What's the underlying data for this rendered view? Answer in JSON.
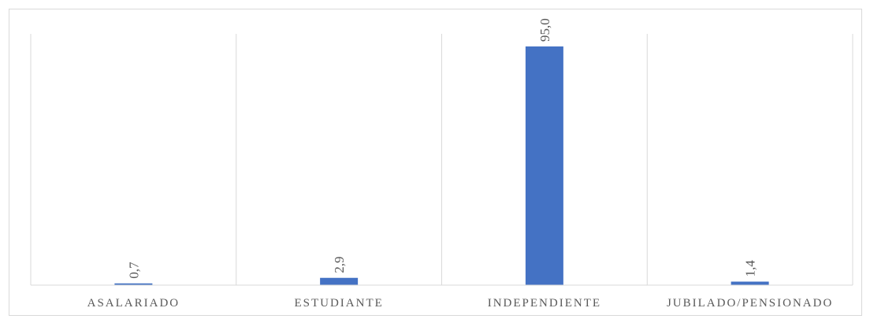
{
  "chart_data": {
    "type": "bar",
    "categories": [
      "ASALARIADO",
      "ESTUDIANTE",
      "INDEPENDIENTE",
      "JUBILADO/PENSIONADO"
    ],
    "values": [
      0.7,
      2.9,
      95.0,
      1.4
    ],
    "value_labels": [
      "0,7",
      "2,9",
      "95,0",
      "1,4"
    ],
    "ylim": [
      0,
      100
    ],
    "grid": "vertical category separators",
    "legend": "none",
    "colors": {
      "bar": "#4472C4",
      "grid": "#d9d9d9",
      "text": "#595959"
    }
  }
}
